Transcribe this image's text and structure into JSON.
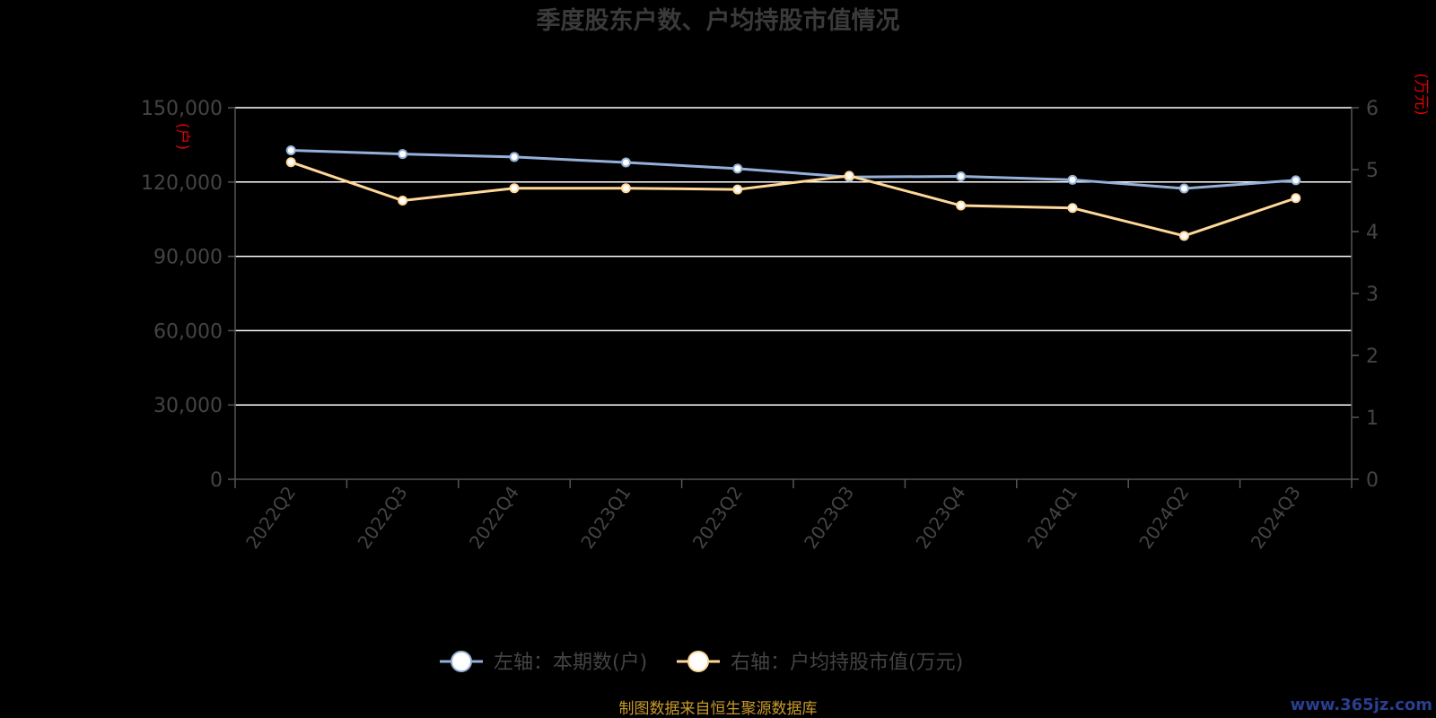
{
  "chart_data": {
    "type": "line",
    "title": "季度股东户数、户均持股市值情况",
    "categories": [
      "2022Q2",
      "2022Q3",
      "2022Q4",
      "2023Q1",
      "2023Q2",
      "2023Q3",
      "2023Q4",
      "2024Q1",
      "2024Q2",
      "2024Q3"
    ],
    "left_axis": {
      "unit_label": "(户)",
      "ylim": [
        0,
        150000
      ],
      "ticks": [
        0,
        30000,
        60000,
        90000,
        120000,
        150000
      ],
      "tick_labels": [
        "0",
        "30,000",
        "60,000",
        "90,000",
        "120,000",
        "150,000"
      ]
    },
    "right_axis": {
      "unit_label": "(万元)",
      "ylim": [
        0,
        6
      ],
      "ticks": [
        0,
        1,
        2,
        3,
        4,
        5,
        6
      ],
      "tick_labels": [
        "0",
        "1",
        "2",
        "3",
        "4",
        "5",
        "6"
      ]
    },
    "series": [
      {
        "name": "左轴：本期数(户)",
        "axis": "left",
        "color": "#94b0d8",
        "values": [
          132800,
          131300,
          130100,
          127900,
          125400,
          122000,
          122300,
          120900,
          117400,
          120700
        ]
      },
      {
        "name": "右轴：户均持股市值(万元)",
        "axis": "right",
        "color": "#ffd899",
        "values": [
          5.12,
          4.5,
          4.7,
          4.7,
          4.68,
          4.9,
          4.42,
          4.38,
          3.93,
          4.54
        ]
      }
    ],
    "grid": true,
    "legend_position": "bottom"
  },
  "footer": {
    "source": "制图数据来自恒生聚源数据库",
    "watermark": "www.365jz.com"
  },
  "colors": {
    "background": "#000000",
    "gridline": "#ffffff",
    "axis": "#555555",
    "unit_label": "#e00000",
    "source_text": "#c89a2a",
    "watermark": "#2a3f8f"
  }
}
